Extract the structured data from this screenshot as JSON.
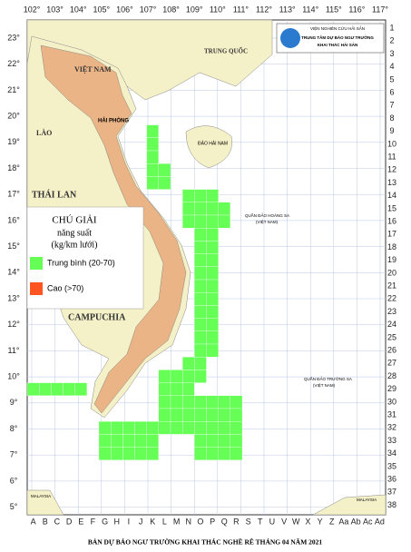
{
  "header": {
    "org_lines": [
      "VIỆN NGHIÊN CỨU HẢI SẢN",
      "TRUNG TÂM DỰ BÁO NGƯ TRƯỜNG",
      "KHAI THÁC HẢI SẢN"
    ]
  },
  "longitude_labels": [
    "102°",
    "103°",
    "104°",
    "105°",
    "106°",
    "107°",
    "108°",
    "109°",
    "110°",
    "111°",
    "112°",
    "113°",
    "114°",
    "115°",
    "116°",
    "117°"
  ],
  "latitude_labels": [
    "23°",
    "22°",
    "21°",
    "20°",
    "19°",
    "18°",
    "17°",
    "16°",
    "15°",
    "14°",
    "13°",
    "12°",
    "11°",
    "10°",
    "9°",
    "8°",
    "7°",
    "6°",
    "5°"
  ],
  "column_labels": [
    "A",
    "B",
    "C",
    "D",
    "E",
    "F",
    "G",
    "H",
    "I",
    "J",
    "K",
    "L",
    "M",
    "N",
    "O",
    "P",
    "Q",
    "R",
    "S",
    "T",
    "U",
    "V",
    "W",
    "X",
    "Y",
    "Z",
    "Aa",
    "Ab",
    "Ac",
    "Ad"
  ],
  "row_labels": [
    "1",
    "2",
    "3",
    "4",
    "5",
    "6",
    "7",
    "8",
    "9",
    "10",
    "11",
    "12",
    "13",
    "14",
    "15",
    "16",
    "17",
    "18",
    "19",
    "20",
    "21",
    "22",
    "23",
    "24",
    "25",
    "26",
    "27",
    "28",
    "29",
    "30",
    "31",
    "32",
    "33",
    "34",
    "35",
    "36",
    "37",
    "38"
  ],
  "places": {
    "china": "TRUNG QUỐC",
    "vietnam": "VIỆT NAM",
    "laos": "LÀO",
    "thailand": "THÁI LAN",
    "cambodia": "CAMPUCHIA",
    "haiphong": "HẢI PHÒNG",
    "hainan": "ĐẢO HẢI NAM",
    "hoangsa": "QUẦN ĐẢO HOÀNG SA",
    "hoangsa_vn": "(VIỆT NAM)",
    "truongsa": "QUẦN ĐẢO TRƯỜNG SA",
    "truongsa_vn": "(VIỆT NAM)",
    "malaysia_west": "MALAYSIA",
    "malaysia_east": "MALAYSIA"
  },
  "legend": {
    "title": "CHÚ GIẢI",
    "subtitle": "năng suất",
    "unit": "(kg/km lưới)",
    "items": [
      {
        "label": "Trung bình (20-70)",
        "color": "#66ff55"
      },
      {
        "label": "Cao (>70)",
        "color": "#ff5522"
      }
    ]
  },
  "footer": {
    "title": "BẢN DỰ BÁO NGƯ TRƯỜNG KHAI THÁC NGHỀ RÊ THÁNG 04 NĂM 2021"
  }
}
